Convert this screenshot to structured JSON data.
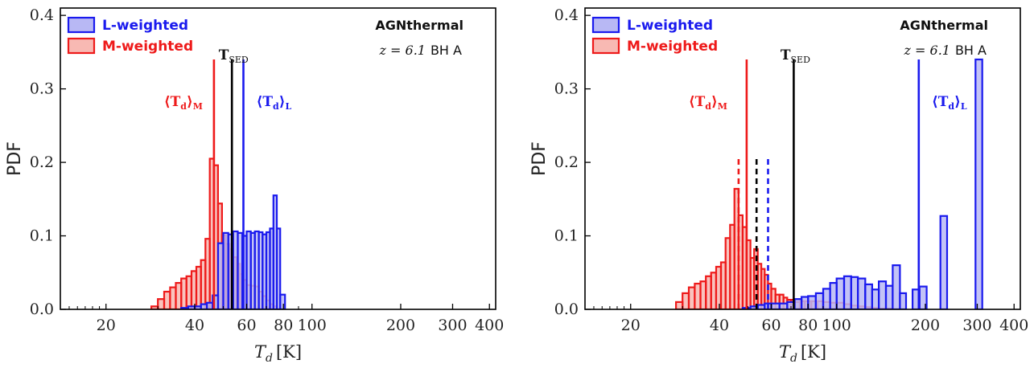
{
  "chart_data": [
    {
      "type": "step-histogram",
      "xlabel": "T_d [K]",
      "ylabel": "PDF",
      "xscale": "log",
      "xlim": [
        14,
        420
      ],
      "ylim": [
        0,
        0.41
      ],
      "xticks": [
        20,
        40,
        60,
        80,
        100,
        200,
        300,
        400
      ],
      "yticks": [
        0.0,
        0.1,
        0.2,
        0.3,
        0.4
      ],
      "legend": {
        "placement": "top-left",
        "entries": [
          "L-weighted",
          "M-weighted"
        ]
      },
      "annotations": {
        "model": "AGNthermal",
        "redshift": "z = 6.1",
        "object": "BH A"
      },
      "colors": {
        "L": "#1a1aee",
        "M": "#ee1a1a",
        "L_fill": "#b8b8f4",
        "M_fill": "#f8b9b3"
      },
      "vlines": [
        {
          "name": "M",
          "x": 46.5,
          "style": "solid",
          "color": "#ee1a1a",
          "label": "⟨T_d⟩_M"
        },
        {
          "name": "SED",
          "x": 53.5,
          "style": "solid",
          "color": "#000000",
          "label": "T_SED"
        },
        {
          "name": "L",
          "x": 58.5,
          "style": "solid",
          "color": "#1a1aee",
          "label": "⟨T_d⟩_L"
        }
      ],
      "series": [
        {
          "name": "L-weighted",
          "edges": [
            34,
            36,
            38,
            40,
            42,
            44,
            46,
            48,
            50,
            52,
            54,
            56,
            58,
            60,
            62,
            64,
            66,
            68,
            70,
            72,
            74,
            76,
            78,
            81
          ],
          "values": [
            0.0,
            0.002,
            0.004,
            0.004,
            0.007,
            0.009,
            0.019,
            0.09,
            0.104,
            0.102,
            0.106,
            0.104,
            0.1,
            0.106,
            0.104,
            0.106,
            0.105,
            0.102,
            0.105,
            0.11,
            0.155,
            0.11,
            0.02
          ]
        },
        {
          "name": "M-weighted",
          "edges": [
            28.5,
            30,
            31.5,
            33,
            34.5,
            36,
            37.5,
            39,
            40.5,
            42,
            43.5,
            45,
            46.5,
            48,
            49.5,
            51,
            52.5,
            54,
            55.5,
            57,
            58.5,
            60,
            62,
            64,
            66,
            68,
            70,
            72,
            74,
            76
          ],
          "values": [
            0.004,
            0.014,
            0.024,
            0.03,
            0.036,
            0.042,
            0.045,
            0.052,
            0.058,
            0.067,
            0.096,
            0.205,
            0.196,
            0.144,
            0.101,
            0.089,
            0.082,
            0.071,
            0.062,
            0.048,
            0.04,
            0.033,
            0.032,
            0.031,
            0.024,
            0.018,
            0.012,
            0.007,
            0.004
          ]
        }
      ]
    },
    {
      "type": "step-histogram",
      "xlabel": "T_d [K]",
      "ylabel": "PDF",
      "xscale": "log",
      "xlim": [
        14,
        420
      ],
      "ylim": [
        0,
        0.41
      ],
      "xticks": [
        20,
        40,
        60,
        80,
        100,
        200,
        300,
        400
      ],
      "yticks": [
        0.0,
        0.1,
        0.2,
        0.3,
        0.4
      ],
      "legend": {
        "placement": "top-left",
        "entries": [
          "L-weighted",
          "M-weighted"
        ]
      },
      "annotations": {
        "model": "AGNthermal",
        "redshift": "z = 6.1",
        "object": "BH A"
      },
      "colors": {
        "L": "#1a1aee",
        "M": "#ee1a1a",
        "L_fill": "#b8b8f4",
        "M_fill": "#f8b9b3"
      },
      "vlines": [
        {
          "name": "M-dashed",
          "x": 46.5,
          "style": "dashed",
          "color": "#ee1a1a"
        },
        {
          "name": "M",
          "x": 49.5,
          "style": "solid",
          "color": "#ee1a1a",
          "label": "⟨T_d⟩_M"
        },
        {
          "name": "SED-dashed",
          "x": 53.5,
          "style": "dashed",
          "color": "#000000"
        },
        {
          "name": "L-dashed",
          "x": 58.5,
          "style": "dashed",
          "color": "#1a1aee"
        },
        {
          "name": "SED",
          "x": 71.5,
          "style": "solid",
          "color": "#000000",
          "label": "T_SED"
        },
        {
          "name": "L",
          "x": 190,
          "style": "solid",
          "color": "#1a1aee",
          "label": "⟨T_d⟩_L"
        }
      ],
      "series": [
        {
          "name": "L-weighted",
          "edges": [
            48,
            51,
            54,
            57,
            60,
            64,
            68,
            72,
            76,
            80,
            85,
            90,
            95,
            100,
            106,
            112,
            118,
            125,
            132,
            139,
            147,
            155,
            164,
            172,
            181,
            191,
            202,
            213,
            225,
            237,
            250,
            265,
            280,
            296,
            312
          ],
          "values": [
            0.002,
            0.004,
            0.006,
            0.008,
            0.008,
            0.008,
            0.01,
            0.014,
            0.017,
            0.018,
            0.022,
            0.028,
            0.036,
            0.042,
            0.045,
            0.044,
            0.042,
            0.034,
            0.027,
            0.038,
            0.032,
            0.06,
            0.022,
            0.0,
            0.027,
            0.031,
            0.0,
            0.0,
            0.127,
            0.0,
            0.0,
            0.0,
            0.0,
            0.34
          ]
        },
        {
          "name": "M-weighted",
          "edges": [
            28.5,
            30,
            31.5,
            33,
            34.5,
            36,
            37.5,
            39,
            40.5,
            42,
            43.5,
            45,
            46.5,
            48,
            49.5,
            51,
            52.5,
            54,
            55.5,
            57,
            58.5,
            60,
            62,
            64,
            66,
            68,
            70,
            72,
            75,
            78,
            82,
            86,
            90,
            95,
            100,
            106,
            112,
            118,
            125,
            132,
            139,
            147,
            155,
            164
          ],
          "values": [
            0.01,
            0.022,
            0.03,
            0.035,
            0.038,
            0.045,
            0.05,
            0.058,
            0.064,
            0.097,
            0.115,
            0.164,
            0.128,
            0.112,
            0.094,
            0.07,
            0.082,
            0.062,
            0.055,
            0.047,
            0.035,
            0.028,
            0.02,
            0.02,
            0.016,
            0.013,
            0.013,
            0.01,
            0.011,
            0.011,
            0.011,
            0.011,
            0.01,
            0.009,
            0.009,
            0.007,
            0.005,
            0.004,
            0.003,
            0.002,
            0.001,
            0.001,
            0.0
          ]
        }
      ]
    }
  ],
  "labels": {
    "L_legend": "L-weighted",
    "M_legend": "M-weighted",
    "model": "AGNthermal",
    "redshift": "z = 6.1",
    "object": "BH A",
    "tsed": "T",
    "tsed_sub": "SED",
    "tm_sub": "M",
    "tl_sub": "L",
    "ylabel": "PDF",
    "xlabel_main": "T",
    "xlabel_sub": "d",
    "xlabel_unit": "[K]"
  }
}
